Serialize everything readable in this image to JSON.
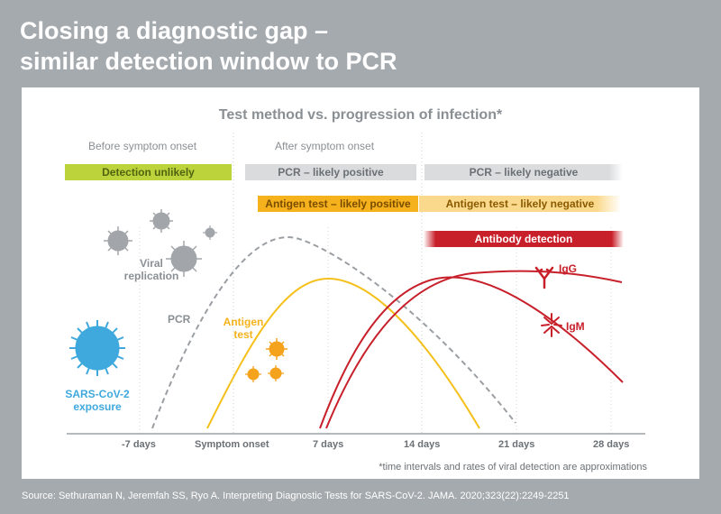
{
  "title_line1": "Closing a diagnostic gap –",
  "title_line2": "similar detection window to PCR",
  "subtitle": "Test method vs. progression of infection*",
  "phases": {
    "before": "Before symptom onset",
    "after": "After symptom onset"
  },
  "bars": {
    "detection_unlikely": "Detection unlikely",
    "pcr_positive": "PCR – likely positive",
    "pcr_negative": "PCR – likely negative",
    "antigen_positive": "Antigen test – likely positive",
    "antigen_negative": "Antigen test – likely negative",
    "antibody": "Antibody detection"
  },
  "labels": {
    "viral_replication": "Viral replication",
    "pcr": "PCR",
    "antigen": "Antigen test",
    "exposure": "SARS-CoV-2 exposure",
    "igg": "IgG",
    "igm": "IgM"
  },
  "ticks": [
    "-7 days",
    "Symptom onset",
    "7 days",
    "14 days",
    "21 days",
    "28 days"
  ],
  "footnote": "*time intervals and rates of viral detection are approximations",
  "source": "Source: Sethuraman N, Jeremfah SS, Ryo A. Interpreting Diagnostic Tests for SARS-CoV-2. JAMA. 2020;323(22):2249-2251",
  "colors": {
    "background": "#a5aaaf",
    "pcr": "#9b9fa3",
    "antigen": "#f5b21c",
    "antibody": "#c8202a",
    "exposure": "#3fa9dd",
    "detection_unlikely": "#bcd33b"
  }
}
